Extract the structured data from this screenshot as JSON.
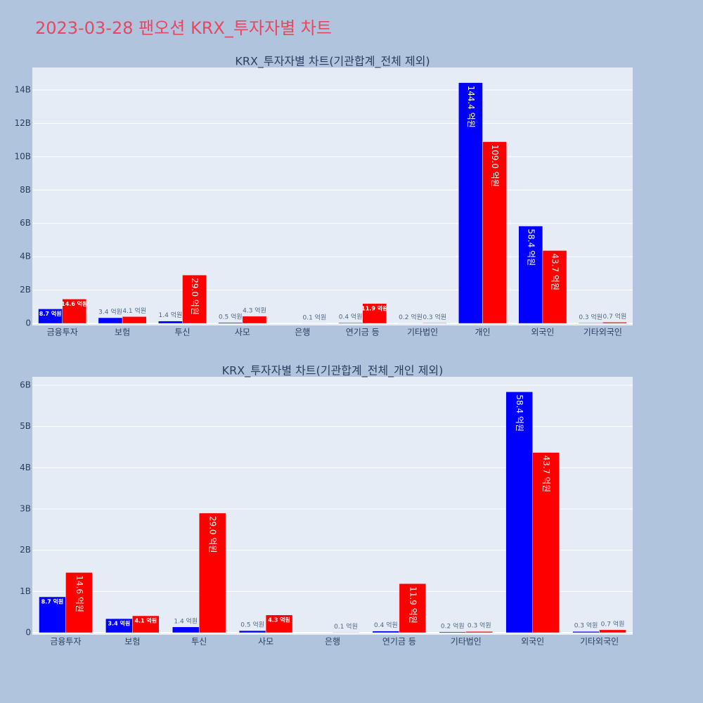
{
  "title": "2023-03-28 팬오션 KRX_투자자별 차트",
  "chart_data": [
    {
      "type": "bar",
      "title": "KRX_투자자별 차트(기관합계_전체 제외)",
      "categories": [
        "금융투자",
        "보험",
        "투신",
        "사모",
        "은행",
        "연기금 등",
        "기타법인",
        "개인",
        "외국인",
        "기타외국인"
      ],
      "series": [
        {
          "color": "#0000ff",
          "values": [
            870000000,
            340000000,
            140000000,
            50000000,
            null,
            40000000,
            20000000,
            14440000000,
            5840000000,
            30000000
          ],
          "value_labels": [
            "8.7 억원",
            "3.4 억원",
            "1.4 억원",
            "0.5 억원",
            null,
            "0.4 억원",
            "0.2 억원",
            "144.4 억원",
            "58.4 억원",
            "0.3 억원"
          ]
        },
        {
          "color": "#ff0000",
          "values": [
            1460000000,
            410000000,
            2900000000,
            430000000,
            10000000,
            1190000000,
            30000000,
            10900000000,
            4370000000,
            70000000
          ],
          "value_labels": [
            "14.6 억원",
            "4.1 억원",
            "29.0 억원",
            "4.3 억원",
            "0.1 억원",
            "11.9 억원",
            "0.3 억원",
            "109.0 억원",
            "43.7 억원",
            "0.7 억원"
          ]
        }
      ],
      "ylim": [
        -125000000,
        15350000000
      ],
      "yticks": [
        0,
        {
          "value": 2000000000,
          "label": "2B"
        },
        {
          "value": 4000000000,
          "label": "4B"
        },
        {
          "value": 6000000000,
          "label": "6B"
        },
        {
          "value": 8000000000,
          "label": "8B"
        },
        {
          "value": 10000000000,
          "label": "10B"
        },
        {
          "value": 12000000000,
          "label": "12B"
        },
        {
          "value": 14000000000,
          "label": "14B"
        }
      ],
      "grid": true
    },
    {
      "type": "bar",
      "title": "KRX_투자자별 차트(기관합계_전체_개인 제외)",
      "categories": [
        "금융투자",
        "보험",
        "투신",
        "사모",
        "은행",
        "연기금 등",
        "기타법인",
        "외국인",
        "기타외국인"
      ],
      "series": [
        {
          "color": "#0000ff",
          "values": [
            870000000,
            340000000,
            140000000,
            50000000,
            null,
            40000000,
            20000000,
            5840000000,
            30000000
          ],
          "value_labels": [
            "8.7 억원",
            "3.4 억원",
            "1.4 억원",
            "0.5 억원",
            null,
            "0.4 억원",
            "0.2 억원",
            "58.4 억원",
            "0.3 억원"
          ]
        },
        {
          "color": "#ff0000",
          "values": [
            1460000000,
            410000000,
            2900000000,
            430000000,
            10000000,
            1190000000,
            30000000,
            4370000000,
            70000000
          ],
          "value_labels": [
            "14.6 억원",
            "4.1 억원",
            "29.0 억원",
            "4.3 억원",
            "0.1 억원",
            "11.9 억원",
            "0.3 억원",
            "43.7 억원",
            "0.7 억원"
          ]
        }
      ],
      "ylim": [
        -51000000,
        6204000000
      ],
      "yticks": [
        0,
        {
          "value": 1000000000,
          "label": "1B"
        },
        {
          "value": 2000000000,
          "label": "2B"
        },
        {
          "value": 3000000000,
          "label": "3B"
        },
        {
          "value": 4000000000,
          "label": "4B"
        },
        {
          "value": 5000000000,
          "label": "5B"
        },
        {
          "value": 6000000000,
          "label": "6B"
        }
      ],
      "grid": true
    }
  ]
}
